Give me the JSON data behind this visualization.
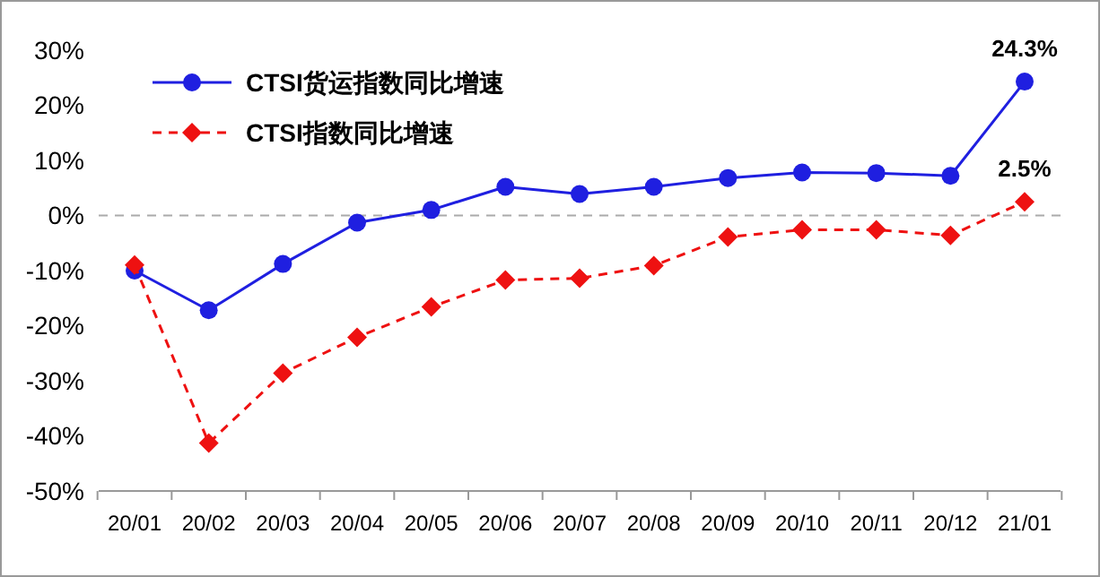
{
  "chart_data": {
    "type": "line",
    "categories": [
      "20/01",
      "20/02",
      "20/03",
      "20/04",
      "20/05",
      "20/06",
      "20/07",
      "20/08",
      "20/09",
      "20/10",
      "20/11",
      "20/12",
      "21/01"
    ],
    "ylim": [
      -50,
      30
    ],
    "yticks": [
      {
        "value": -50,
        "label": "-50%"
      },
      {
        "value": -40,
        "label": "-40%"
      },
      {
        "value": -30,
        "label": "-30%"
      },
      {
        "value": -20,
        "label": "-20%"
      },
      {
        "value": -10,
        "label": "-10%"
      },
      {
        "value": 0,
        "label": "0%"
      },
      {
        "value": 10,
        "label": "10%"
      },
      {
        "value": 20,
        "label": "20%"
      },
      {
        "value": 30,
        "label": "30%"
      }
    ],
    "series": [
      {
        "name": "CTSI货运指数同比增速",
        "color": "#1f1fe0",
        "marker": "circle",
        "line_style": "solid",
        "values": [
          -10,
          -17.2,
          -8.8,
          -1.3,
          1,
          5.2,
          3.9,
          5.2,
          6.8,
          7.8,
          7.7,
          7.2,
          24.3
        ],
        "value_labels": [
          null,
          null,
          null,
          null,
          null,
          null,
          null,
          null,
          null,
          null,
          null,
          null,
          "24.3%"
        ]
      },
      {
        "name": "CTSI指数同比增速",
        "color": "#ee1111",
        "marker": "diamond",
        "line_style": "dashed",
        "values": [
          -9,
          -41.3,
          -28.6,
          -22.1,
          -16.6,
          -11.7,
          -11.4,
          -9.1,
          -3.9,
          -2.6,
          -2.6,
          -3.6,
          2.5
        ],
        "value_labels": [
          null,
          null,
          null,
          null,
          null,
          null,
          null,
          null,
          null,
          null,
          null,
          null,
          "2.5%"
        ]
      }
    ],
    "ref_lines": [
      {
        "axis": "y",
        "value": 0,
        "color": "#aaaaaa",
        "line_style": "dashed"
      }
    ],
    "legend": "top left",
    "grid": false
  }
}
